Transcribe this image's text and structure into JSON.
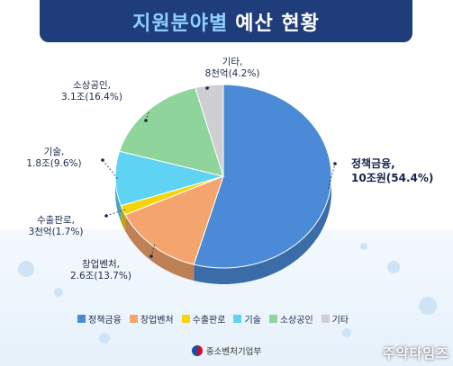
{
  "title": {
    "part1": "지원분야별",
    "part2": "예산 현황"
  },
  "chart_data": {
    "type": "pie",
    "title": "지원분야별 예산 현황",
    "slices": [
      {
        "name": "정책금융",
        "value": 54.4,
        "amount": "10조원",
        "label_line1": "정책금융,",
        "label_line2": "10조원(54.4%)",
        "color": "#4a8ad6"
      },
      {
        "name": "창업벤처",
        "value": 13.7,
        "amount": "2.6조",
        "label_line1": "창업벤처,",
        "label_line2": "2.6조(13.7%)",
        "color": "#f4a46d"
      },
      {
        "name": "수출판로",
        "value": 1.7,
        "amount": "3천억",
        "label_line1": "수출판로,",
        "label_line2": "3천억(1.7%)",
        "color": "#f7d40a"
      },
      {
        "name": "기술",
        "value": 9.6,
        "amount": "1.8조",
        "label_line1": "기술,",
        "label_line2": "1.8조(9.6%)",
        "color": "#5ed3f3"
      },
      {
        "name": "소상공인",
        "value": 16.4,
        "amount": "3.1조",
        "label_line1": "소상공인,",
        "label_line2": "3.1조(16.4%)",
        "color": "#8fd49a"
      },
      {
        "name": "기타",
        "value": 4.2,
        "amount": "8천억",
        "label_line1": "기타,",
        "label_line2": "8천억(4.2%)",
        "color": "#cfcfd2"
      }
    ],
    "legend_position": "bottom"
  },
  "footer": {
    "ministry": "중소벤처기업부"
  },
  "watermark": "주약타임즈"
}
